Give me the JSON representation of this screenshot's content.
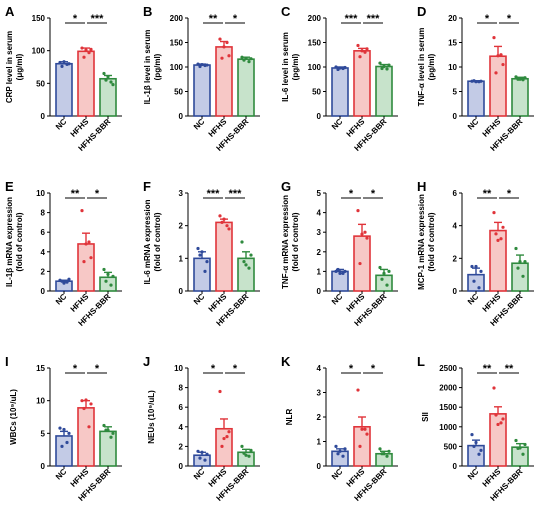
{
  "colors": {
    "NC": "#2f4a9a",
    "HFHS": "#e0343a",
    "HFHS-BBR": "#2f8a3e",
    "NC_fill": "#c3cbe6",
    "HFHS_fill": "#f7c8c6",
    "HFHS-BBR_fill": "#c7e3cb"
  },
  "chart_data": [
    {
      "type": "bar",
      "panel": "A",
      "ylabel": "CRP level in serum\n(μg/ml)",
      "categories": [
        "NC",
        "HFHS",
        "HFHS-BBR"
      ],
      "values": [
        80,
        99,
        57
      ],
      "errors": [
        3,
        5,
        5
      ],
      "ylim": [
        0,
        150
      ],
      "yticks": [
        "0",
        "50",
        "100",
        "150"
      ],
      "points": [
        [
          82,
          79,
          76,
          80,
          83
        ],
        [
          104,
          97,
          90,
          102,
          101
        ],
        [
          65,
          52,
          55,
          48,
          60
        ]
      ],
      "significance": [
        {
          "pair": [
            0,
            1
          ],
          "label": "*"
        },
        {
          "pair": [
            1,
            2
          ],
          "label": "***"
        }
      ]
    },
    {
      "type": "bar",
      "panel": "B",
      "ylabel": "IL-1β level in serum\n(pg/ml)",
      "categories": [
        "NC",
        "HFHS",
        "HFHS-BBR"
      ],
      "values": [
        104,
        141,
        116
      ],
      "errors": [
        2,
        11,
        4
      ],
      "ylim": [
        0,
        200
      ],
      "yticks": [
        "0",
        "50",
        "100",
        "150",
        "200"
      ],
      "points": [
        [
          106,
          103,
          101,
          104,
          105
        ],
        [
          157,
          150,
          118,
          123,
          141
        ],
        [
          120,
          111,
          114,
          117,
          118
        ]
      ],
      "significance": [
        {
          "pair": [
            0,
            1
          ],
          "label": "**"
        },
        {
          "pair": [
            1,
            2
          ],
          "label": "*"
        }
      ]
    },
    {
      "type": "bar",
      "panel": "C",
      "ylabel": "IL-6 level in serum\n(pg/ml)",
      "categories": [
        "NC",
        "HFHS",
        "HFHS-BBR"
      ],
      "values": [
        98,
        133,
        101
      ],
      "errors": [
        2,
        5,
        4
      ],
      "ylim": [
        0,
        200
      ],
      "yticks": [
        "0",
        "50",
        "100",
        "150",
        "200"
      ],
      "points": [
        [
          100,
          97,
          95,
          99,
          98
        ],
        [
          144,
          130,
          121,
          137,
          133
        ],
        [
          108,
          96,
          97,
          104,
          101
        ]
      ],
      "significance": [
        {
          "pair": [
            0,
            1
          ],
          "label": "***"
        },
        {
          "pair": [
            1,
            2
          ],
          "label": "***"
        }
      ]
    },
    {
      "type": "bar",
      "panel": "D",
      "ylabel": "TNF-α level in serum\n(pg/ml)",
      "categories": [
        "NC",
        "HFHS",
        "HFHS-BBR"
      ],
      "values": [
        7.1,
        12.2,
        7.6
      ],
      "errors": [
        0.1,
        2.0,
        0.3
      ],
      "ylim": [
        0,
        20
      ],
      "yticks": [
        "0",
        "5",
        "10",
        "15",
        "20"
      ],
      "points": [
        [
          7.1,
          7.0,
          7.2,
          7.1,
          7.0
        ],
        [
          16.0,
          12.5,
          8.8,
          10.5,
          12.3
        ],
        [
          8.0,
          7.4,
          7.5,
          7.8,
          7.5
        ]
      ],
      "significance": [
        {
          "pair": [
            0,
            1
          ],
          "label": "*"
        },
        {
          "pair": [
            1,
            2
          ],
          "label": "*"
        }
      ]
    },
    {
      "type": "bar",
      "panel": "E",
      "ylabel": "IL-1β mRNA expression\n(fold of control)",
      "categories": [
        "NC",
        "HFHS",
        "HFHS-BBR"
      ],
      "values": [
        1.0,
        4.8,
        1.4
      ],
      "errors": [
        0.1,
        1.1,
        0.5
      ],
      "ylim": [
        0,
        10
      ],
      "yticks": [
        "0",
        "2",
        "4",
        "6",
        "8",
        "10"
      ],
      "points": [
        [
          1.1,
          0.9,
          1.0,
          1.2,
          0.8
        ],
        [
          8.2,
          5.0,
          3.0,
          3.4,
          4.8
        ],
        [
          2.2,
          0.6,
          1.0,
          1.5,
          1.7
        ]
      ],
      "significance": [
        {
          "pair": [
            0,
            1
          ],
          "label": "**"
        },
        {
          "pair": [
            1,
            2
          ],
          "label": "*"
        }
      ]
    },
    {
      "type": "bar",
      "panel": "F",
      "ylabel": "IL-6 mRNA expression\n(fold of control)",
      "categories": [
        "NC",
        "HFHS",
        "HFHS-BBR"
      ],
      "values": [
        1.0,
        2.1,
        1.0
      ],
      "errors": [
        0.2,
        0.1,
        0.2
      ],
      "ylim": [
        0,
        3
      ],
      "yticks": [
        "0",
        "1",
        "2",
        "3"
      ],
      "points": [
        [
          1.3,
          0.6,
          1.1,
          0.9,
          1.2
        ],
        [
          2.3,
          2.0,
          2.1,
          1.9,
          2.2
        ],
        [
          1.5,
          0.7,
          0.9,
          1.1,
          0.8
        ]
      ],
      "significance": [
        {
          "pair": [
            0,
            1
          ],
          "label": "***"
        },
        {
          "pair": [
            1,
            2
          ],
          "label": "***"
        }
      ]
    },
    {
      "type": "bar",
      "panel": "G",
      "ylabel": "TNF-α mRNA expression\n(fold of control)",
      "categories": [
        "NC",
        "HFHS",
        "HFHS-BBR"
      ],
      "values": [
        1.0,
        2.8,
        0.8
      ],
      "errors": [
        0.1,
        0.6,
        0.3
      ],
      "ylim": [
        0,
        5
      ],
      "yticks": [
        "0",
        "1",
        "2",
        "3",
        "4",
        "5"
      ],
      "points": [
        [
          1.0,
          0.9,
          1.1,
          1.0,
          0.9
        ],
        [
          4.1,
          3.0,
          1.4,
          2.7,
          2.9
        ],
        [
          1.2,
          0.3,
          0.6,
          1.0,
          0.9
        ]
      ],
      "significance": [
        {
          "pair": [
            0,
            1
          ],
          "label": "*"
        },
        {
          "pair": [
            1,
            2
          ],
          "label": "*"
        }
      ]
    },
    {
      "type": "bar",
      "panel": "H",
      "ylabel": "MCP-1 mRNA expression\n(fold of control)",
      "categories": [
        "NC",
        "HFHS",
        "HFHS-BBR"
      ],
      "values": [
        1.0,
        3.7,
        1.7
      ],
      "errors": [
        0.4,
        0.5,
        0.5
      ],
      "ylim": [
        0,
        6
      ],
      "yticks": [
        "0",
        "2",
        "4",
        "6"
      ],
      "points": [
        [
          1.5,
          0.2,
          0.6,
          1.2,
          1.5
        ],
        [
          4.8,
          3.2,
          3.5,
          3.9,
          3.1
        ],
        [
          2.6,
          0.9,
          1.4,
          1.8,
          1.8
        ]
      ],
      "significance": [
        {
          "pair": [
            0,
            1
          ],
          "label": "**"
        },
        {
          "pair": [
            1,
            2
          ],
          "label": "*"
        }
      ]
    },
    {
      "type": "bar",
      "panel": "I",
      "ylabel": "WBCs (10⁹/uL)",
      "categories": [
        "NC",
        "HFHS",
        "HFHS-BBR"
      ],
      "values": [
        4.6,
        8.9,
        5.3
      ],
      "errors": [
        0.7,
        1.1,
        0.7
      ],
      "ylim": [
        0,
        15
      ],
      "yticks": [
        "0",
        "5",
        "10",
        "15"
      ],
      "points": [
        [
          5.8,
          3.6,
          3.0,
          5.0,
          5.6
        ],
        [
          10.0,
          6.0,
          8.8,
          9.5,
          10.1
        ],
        [
          6.2,
          4.4,
          5.5,
          5.0,
          5.5
        ]
      ],
      "significance": [
        {
          "pair": [
            0,
            1
          ],
          "label": "*"
        },
        {
          "pair": [
            1,
            2
          ],
          "label": "*"
        }
      ]
    },
    {
      "type": "bar",
      "panel": "J",
      "ylabel": "NEUs (10⁹/uL)",
      "categories": [
        "NC",
        "HFHS",
        "HFHS-BBR"
      ],
      "values": [
        1.1,
        3.8,
        1.4
      ],
      "errors": [
        0.3,
        1.0,
        0.3
      ],
      "ylim": [
        0,
        10
      ],
      "yticks": [
        "0",
        "2",
        "4",
        "6",
        "8",
        "10"
      ],
      "points": [
        [
          1.5,
          0.6,
          0.8,
          1.2,
          1.4
        ],
        [
          7.6,
          3.0,
          2.0,
          3.5,
          2.8
        ],
        [
          2.0,
          1.0,
          1.3,
          1.6,
          1.1
        ]
      ],
      "significance": [
        {
          "pair": [
            0,
            1
          ],
          "label": "*"
        },
        {
          "pair": [
            1,
            2
          ],
          "label": "*"
        }
      ]
    },
    {
      "type": "bar",
      "panel": "K",
      "ylabel": "NLR",
      "categories": [
        "NC",
        "HFHS",
        "HFHS-BBR"
      ],
      "values": [
        0.6,
        1.6,
        0.5
      ],
      "errors": [
        0.1,
        0.4,
        0.1
      ],
      "ylim": [
        0,
        4
      ],
      "yticks": [
        "0",
        "1",
        "2",
        "3",
        "4"
      ],
      "points": [
        [
          0.8,
          0.4,
          0.5,
          0.7,
          0.6
        ],
        [
          3.1,
          1.5,
          0.8,
          1.3,
          1.5
        ],
        [
          0.7,
          0.4,
          0.5,
          0.6,
          0.5
        ]
      ],
      "significance": [
        {
          "pair": [
            0,
            1
          ],
          "label": "*"
        },
        {
          "pair": [
            1,
            2
          ],
          "label": "*"
        }
      ]
    },
    {
      "type": "bar",
      "panel": "L",
      "ylabel": "SII",
      "categories": [
        "NC",
        "HFHS",
        "HFHS-BBR"
      ],
      "values": [
        520,
        1330,
        480
      ],
      "errors": [
        140,
        180,
        90
      ],
      "ylim": [
        0,
        2500
      ],
      "yticks": [
        "0",
        "500",
        "1000",
        "1500",
        "2000",
        "2500"
      ],
      "points": [
        [
          800,
          300,
          500,
          400,
          600
        ],
        [
          1990,
          1100,
          1300,
          1200,
          1060
        ],
        [
          650,
          300,
          450,
          550,
          460
        ]
      ],
      "significance": [
        {
          "pair": [
            0,
            1
          ],
          "label": "**"
        },
        {
          "pair": [
            1,
            2
          ],
          "label": "**"
        }
      ]
    }
  ]
}
